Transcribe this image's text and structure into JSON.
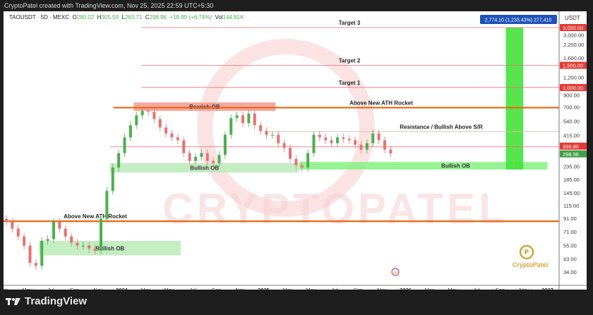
{
  "header": {
    "caption": "CryptoPatel created with TradingView.com, Nov 25, 2025 22:59 UTC+5:30"
  },
  "legend": {
    "symbol": "TAOUSDT · 5D · MEXC",
    "o_label": "O",
    "o": "280.02",
    "h_label": "H",
    "h": "305.59",
    "l_label": "L",
    "l": "263.71",
    "c_label": "C",
    "c": "298.96",
    "change": "+18.89 (+6.74%)",
    "vol_label": "Vol",
    "vol": "144.81K"
  },
  "measure_label": "2,774.10 (1,233.43%) 277,410",
  "footer": {
    "brand": "TradingView",
    "icon": "tradingview-logo-icon"
  },
  "watermark": "CRYPTOPATEL",
  "logo_text": "CryptoPatel",
  "colors": {
    "up": "#4caf50",
    "down": "#e57373",
    "orange": "#e8660f",
    "target_line": "#e57373",
    "ob_green": "#b7e9b5",
    "ob_bright": "#7ef07a",
    "bearish_ob": "#f29a93",
    "measure": "#2962ff"
  },
  "chart_data": {
    "type": "candlestick",
    "scale": "log",
    "price_axis_unit": "USDT",
    "price_ticks": [
      "3,000.00",
      "2,200.00",
      "1,600.00",
      "1,200.00",
      "900.00",
      "700.00",
      "540.00",
      "415.00",
      "235.00",
      "185.00",
      "145.00",
      "115.00",
      "91.00",
      "71.00",
      "55.00",
      "43.00",
      "34.00"
    ],
    "price_tick_values": [
      3000,
      2200,
      1600,
      1200,
      900,
      700,
      540,
      415,
      235,
      185,
      145,
      115,
      91,
      71,
      55,
      43,
      34
    ],
    "price_labels": [
      {
        "text": "3,000.00",
        "value": 3000,
        "color": "#e53935"
      },
      {
        "text": "1,500.00",
        "value": 1500,
        "color": "#e53935"
      },
      {
        "text": "1,000.00",
        "value": 1000,
        "color": "#e53935"
      },
      {
        "text": "336.80",
        "value": 336.8,
        "color": "#e53935"
      },
      {
        "text": "298.96",
        "value": 298.96,
        "color": "#43a047"
      }
    ],
    "time_ticks": [
      {
        "label": "Mar",
        "month": "2023-03"
      },
      {
        "label": "May",
        "month": "2023-05"
      },
      {
        "label": "Jul",
        "month": "2023-07"
      },
      {
        "label": "Sep",
        "month": "2023-09"
      },
      {
        "label": "Nov",
        "month": "2023-11"
      },
      {
        "label": "2024",
        "month": "2024-01",
        "bold": true
      },
      {
        "label": "Mar",
        "month": "2024-03"
      },
      {
        "label": "May",
        "month": "2024-05"
      },
      {
        "label": "Jul",
        "month": "2024-07"
      },
      {
        "label": "Sep",
        "month": "2024-09"
      },
      {
        "label": "Nov",
        "month": "2024-11"
      },
      {
        "label": "2025",
        "month": "2025-01",
        "bold": true
      },
      {
        "label": "Mar",
        "month": "2025-03"
      },
      {
        "label": "May",
        "month": "2025-05"
      },
      {
        "label": "Jul",
        "month": "2025-07"
      },
      {
        "label": "Sep",
        "month": "2025-09"
      },
      {
        "label": "Nov",
        "month": "2025-11"
      },
      {
        "label": "2026",
        "month": "2026-01",
        "bold": true
      },
      {
        "label": "Mar",
        "month": "2026-03"
      },
      {
        "label": "May",
        "month": "2026-05"
      },
      {
        "label": "Jul",
        "month": "2026-07"
      },
      {
        "label": "Sep",
        "month": "2026-09"
      },
      {
        "label": "Nov",
        "month": "2026-11"
      },
      {
        "label": "2027",
        "month": "2027-01",
        "bold": true
      }
    ],
    "closes_semimonthly_from_2023_03": [
      85,
      75,
      65,
      55,
      40,
      38,
      60,
      62,
      85,
      75,
      65,
      58,
      55,
      55,
      52,
      50,
      90,
      150,
      230,
      300,
      400,
      500,
      600,
      650,
      640,
      560,
      480,
      430,
      400,
      380,
      300,
      260,
      280,
      300,
      260,
      250,
      290,
      420,
      570,
      600,
      520,
      620,
      500,
      450,
      420,
      420,
      360,
      330,
      270,
      240,
      230,
      300,
      420,
      400,
      380,
      360,
      400,
      390,
      380,
      350,
      320,
      360,
      430,
      380,
      320,
      298.96
    ],
    "levels": [
      {
        "label": "Target 3",
        "price": 3000,
        "style": "target"
      },
      {
        "label": "Target 2",
        "price": 1500,
        "style": "target"
      },
      {
        "label": "Target 1",
        "price": 1000,
        "style": "target"
      },
      {
        "label": "Above New ATH Rocket",
        "price": 690,
        "style": "orange",
        "from": "2024-01",
        "to": "2027-01"
      },
      {
        "label": "Resistance / Bullish Above S/R",
        "price": 445,
        "style": "sr",
        "from": "2025-01",
        "to": "2027-01"
      },
      {
        "label": "",
        "price": 336.8,
        "style": "target",
        "from": "2023-12",
        "to": "2027-01"
      },
      {
        "label": "Above New ATH Rocket",
        "price": 86,
        "style": "orange",
        "from": "2023-03",
        "to": "2024-06"
      }
    ],
    "zones": [
      {
        "label": "Bearish OB",
        "top": 760,
        "bottom": 650,
        "from": "2024-02",
        "to": "2025-02",
        "kind": "bearish"
      },
      {
        "label": "Bullish OB",
        "top": 250,
        "bottom": 210,
        "from": "2023-12",
        "to": "2025-04",
        "kind": "bullish"
      },
      {
        "label": "Bullish OB",
        "top": 255,
        "bottom": 222,
        "from": "2025-04",
        "to": "2027-01",
        "kind": "bullish-bright"
      },
      {
        "label": "Bullish OB",
        "top": 60,
        "bottom": 46,
        "from": "2023-06",
        "to": "2024-06",
        "kind": "bullish"
      }
    ],
    "projection": {
      "from_price": 222,
      "to_price": 3000,
      "from": "2026-09",
      "to": "2026-10"
    }
  }
}
